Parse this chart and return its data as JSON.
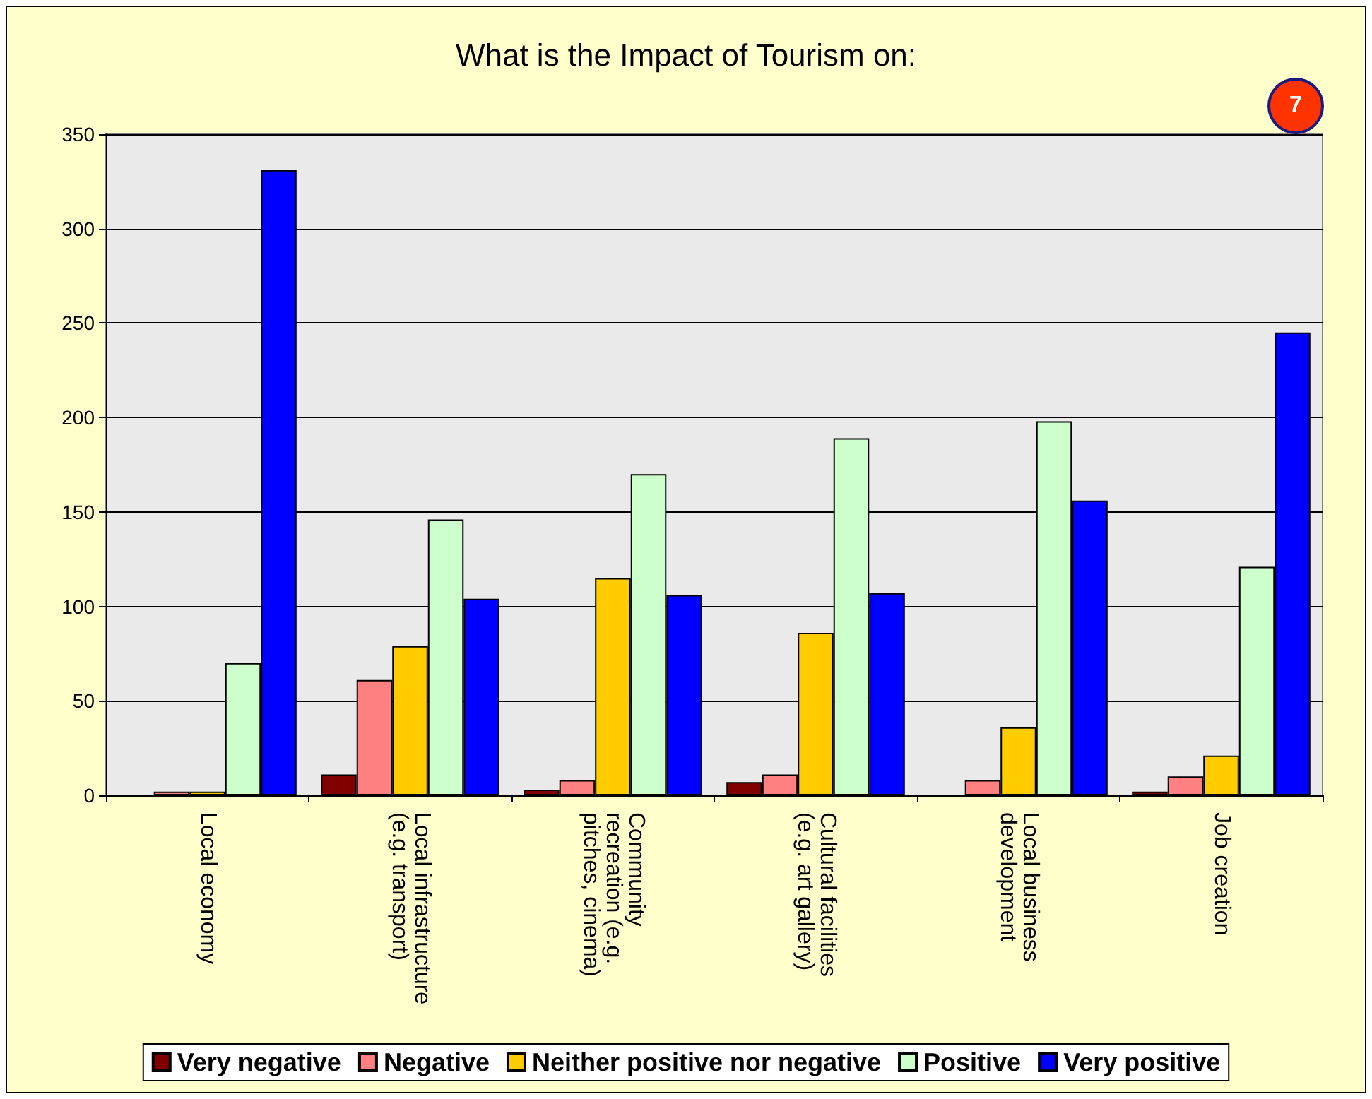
{
  "chart_data": {
    "type": "bar",
    "title": "What is the Impact of Tourism on:",
    "categories": [
      "Local economy",
      "Local infrastructure (e.g. transport)",
      "Community recreation (e.g. pitches, cinema)",
      "Cultural facilities (e.g. art gallery)",
      "Local business development",
      "Job creation"
    ],
    "series": [
      {
        "name": "Very negative",
        "color": "#800000",
        "values": [
          0,
          11,
          3,
          7,
          0,
          2
        ]
      },
      {
        "name": "Negative",
        "color": "#ff8080",
        "values": [
          2,
          61,
          8,
          11,
          8,
          10
        ]
      },
      {
        "name": "Neither positive nor negative",
        "color": "#ffcc00",
        "values": [
          2,
          79,
          115,
          86,
          36,
          21
        ]
      },
      {
        "name": "Positive",
        "color": "#ccffcc",
        "values": [
          70,
          146,
          170,
          189,
          198,
          121
        ]
      },
      {
        "name": "Very positive",
        "color": "#0000ff",
        "values": [
          331,
          104,
          106,
          107,
          156,
          245
        ]
      }
    ],
    "ylim": [
      0,
      350
    ],
    "yticks": [
      0,
      50,
      100,
      150,
      200,
      250,
      300,
      350
    ],
    "grid": "y",
    "legend": "bottom",
    "annotations": [
      "7"
    ]
  }
}
